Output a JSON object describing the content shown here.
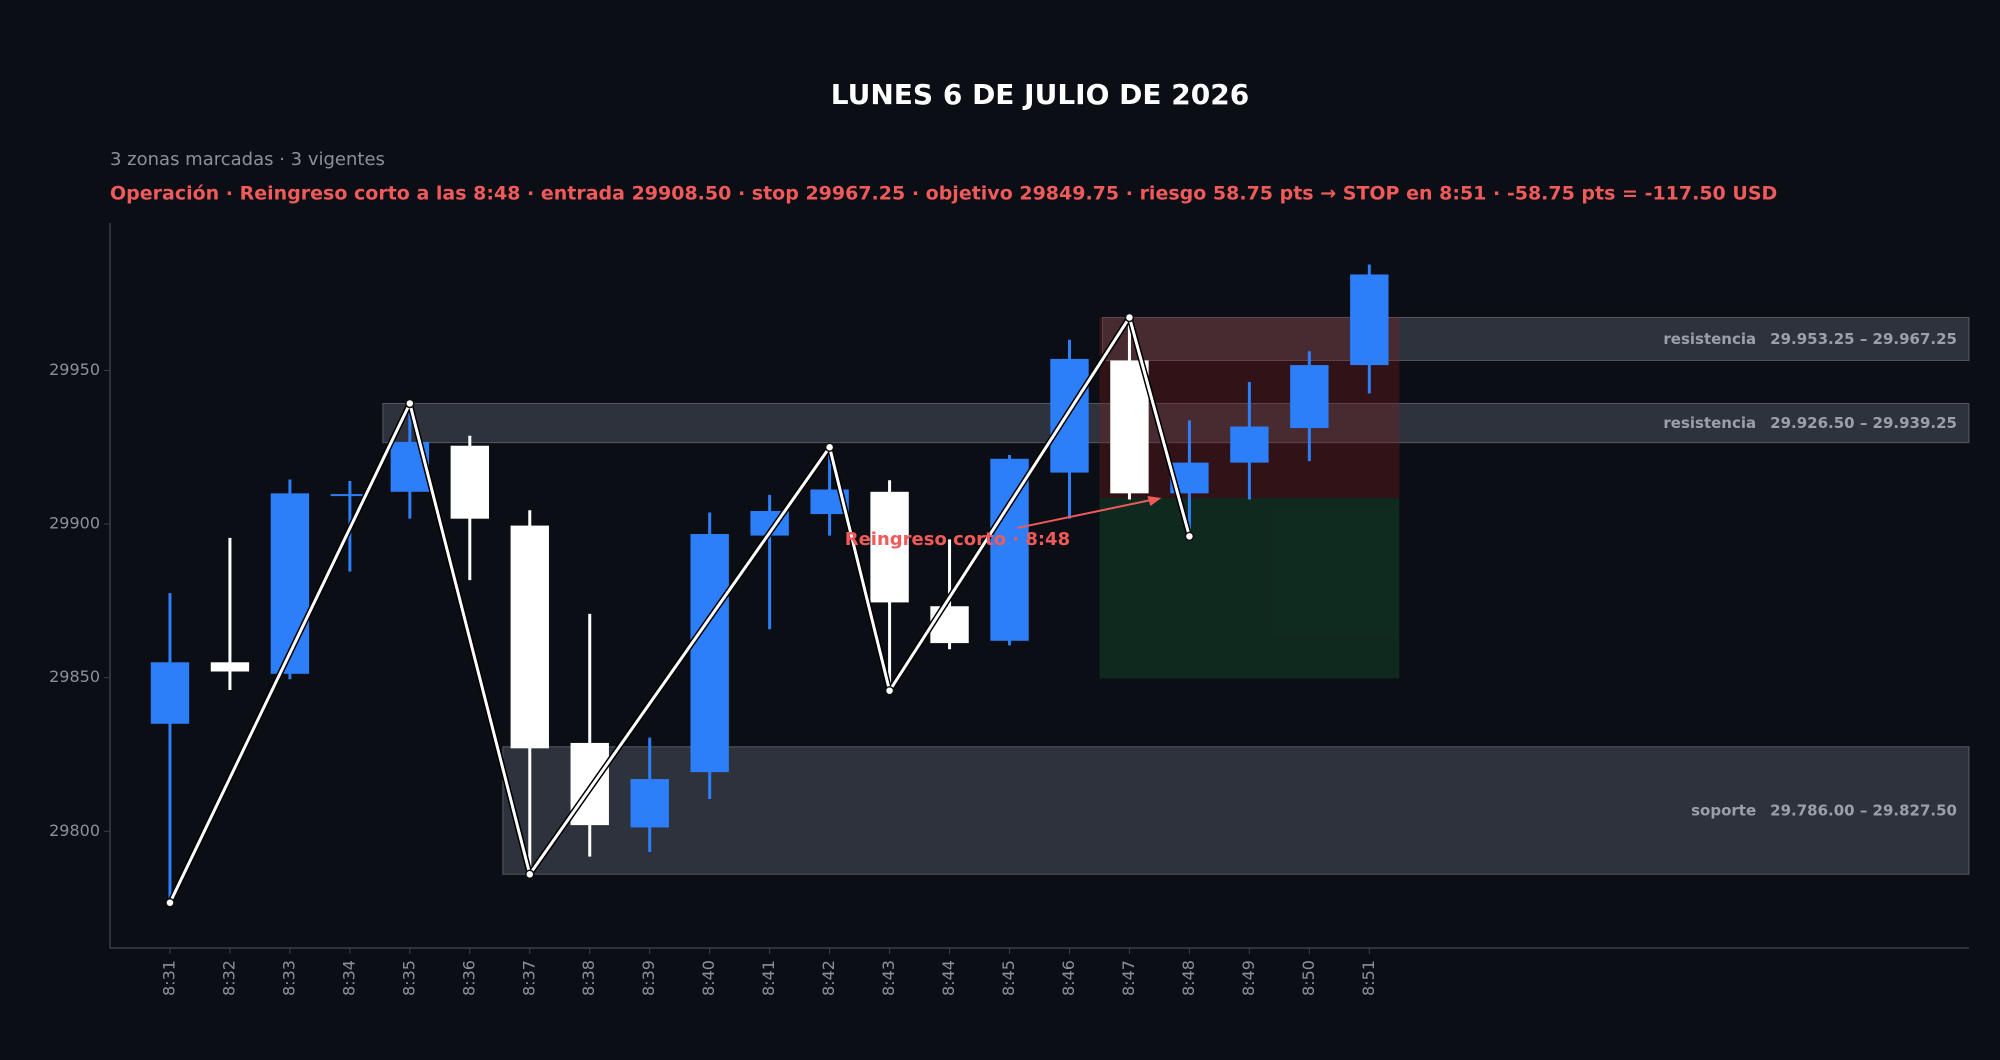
{
  "chart_data": {
    "type": "candlestick",
    "title": "LUNES 6 DE JULIO DE 2026",
    "subtitle": "3 zonas marcadas · 3 vigentes",
    "trade": {
      "text": "Operación · Reingreso corto a las 8:48 · entrada 29908.50 · stop 29967.25 · objetivo 29849.75 · riesgo 58.75 pts   →   STOP en 8:51 · -58.75 pts = -117.50 USD",
      "entry": 29908.5,
      "stop": 29967.25,
      "target": 29849.75,
      "time": "8:48",
      "start": "8:47",
      "end": "8:51",
      "annotation": "Reingreso corto · 8:48",
      "color": "#f05a5a"
    },
    "categories": [
      "8:31",
      "8:32",
      "8:33",
      "8:34",
      "8:35",
      "8:36",
      "8:37",
      "8:38",
      "8:39",
      "8:40",
      "8:41",
      "8:42",
      "8:43",
      "8:44",
      "8:45",
      "8:46",
      "8:47",
      "8:48",
      "8:49",
      "8:50",
      "8:51"
    ],
    "open": [
      29835,
      29855,
      29851.25,
      29909.5,
      29910.5,
      29925.5,
      29899.5,
      29828.75,
      29801.25,
      29819.25,
      29896.25,
      29903.25,
      29910.5,
      29873.25,
      29862,
      29916.75,
      29953.25,
      29910,
      29920,
      29931.25,
      29951.75
    ],
    "high": [
      29877.5,
      29895.5,
      29914.5,
      29914,
      29939.25,
      29928.75,
      29904.5,
      29870.75,
      29830.5,
      29903.75,
      29909.5,
      29925,
      29914.25,
      29895,
      29922.5,
      29960,
      29967.25,
      29933.75,
      29946.25,
      29956.25,
      29984.5
    ],
    "low": [
      29776.75,
      29846,
      29849.5,
      29884.5,
      29901.75,
      29881.75,
      29786,
      29791.75,
      29793.25,
      29810.5,
      29865.75,
      29896.25,
      29845.75,
      29859.25,
      29860.5,
      29901.75,
      29908,
      29896,
      29908,
      29920.5,
      29942.5
    ],
    "close": [
      29855,
      29852,
      29910,
      29909.75,
      29926.75,
      29901.75,
      29827,
      29802,
      29817,
      29896.75,
      29904.25,
      29911.25,
      29874.5,
      29861.25,
      29921.25,
      29953.75,
      29910,
      29920,
      29931.75,
      29951.75,
      29981.25
    ],
    "up_color": "#2d7ff9",
    "down_color": "#ffffff",
    "zigzag": {
      "categories": [
        "8:31",
        "8:35",
        "8:37",
        "8:42",
        "8:43",
        "8:47",
        "8:48"
      ],
      "values": [
        29776.75,
        29939.25,
        29786,
        29925,
        29845.75,
        29967.25,
        29896
      ],
      "color": "#ffffff"
    },
    "zones": [
      {
        "label": "resistencia",
        "low": 29953.25,
        "high": 29967.25,
        "range_label": "29.953.25 – 29.967.25",
        "start": "8:47"
      },
      {
        "label": "resistencia",
        "low": 29926.5,
        "high": 29939.25,
        "range_label": "29.926.50 – 29.939.25",
        "start": "8:35"
      },
      {
        "label": "soporte",
        "low": 29786,
        "high": 29827.5,
        "range_label": "29.786.00 – 29.827.50",
        "start": "8:37"
      }
    ],
    "ylim": [
      29762,
      29998
    ],
    "yticks": [
      29800,
      29850,
      29900,
      29950
    ]
  }
}
